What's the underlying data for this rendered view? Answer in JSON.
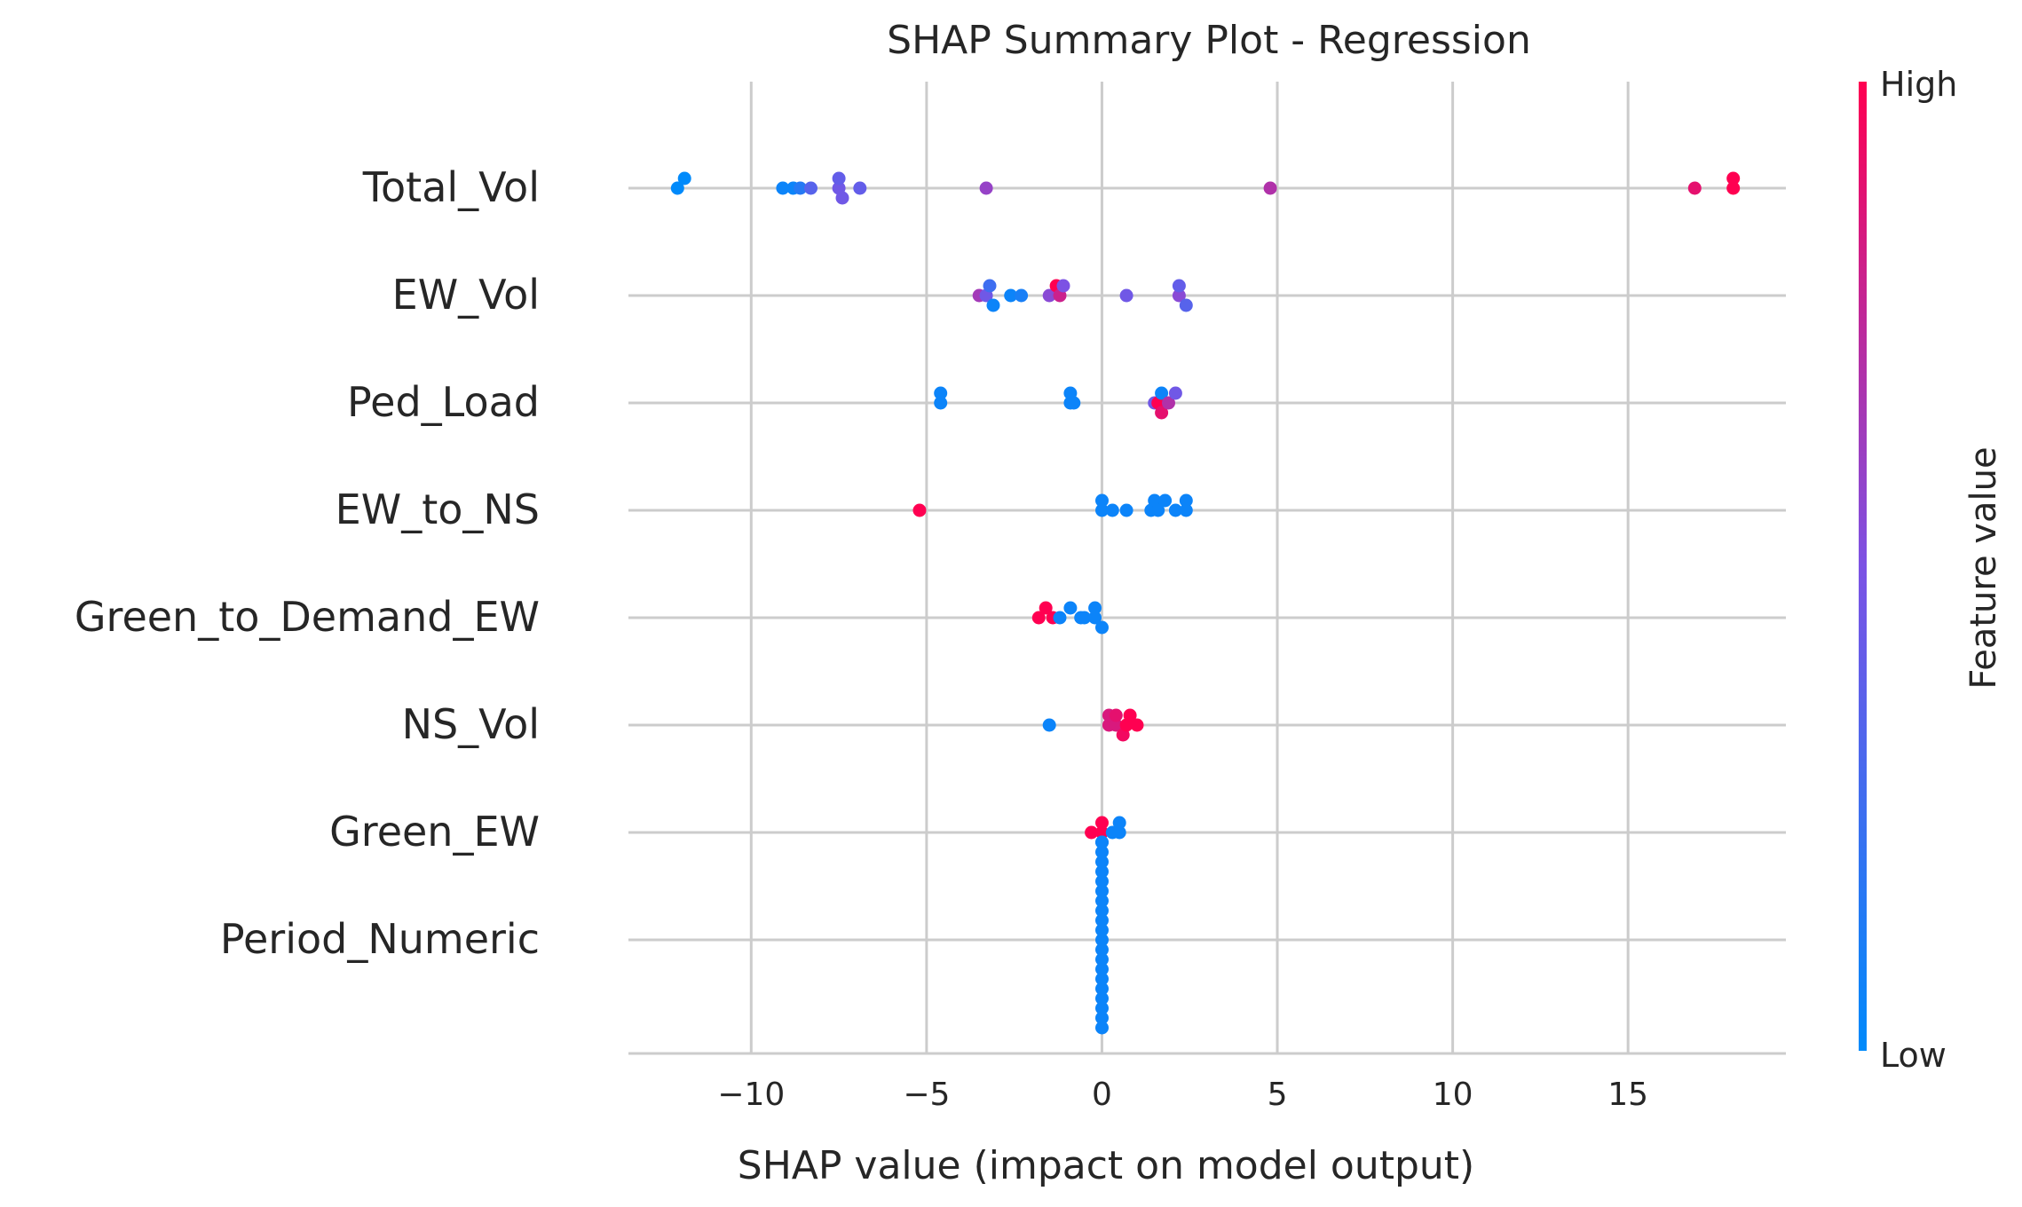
{
  "chart_data": {
    "type": "scatter",
    "title": "SHAP Summary Plot - Regression",
    "xlabel": "SHAP value (impact on model output)",
    "ylabel": "",
    "xlim": [
      -13.5,
      19.5
    ],
    "xticks": [
      -10,
      -5,
      0,
      5,
      10,
      15
    ],
    "xtick_labels": [
      "−10",
      "−5",
      "0",
      "5",
      "10",
      "15"
    ],
    "grid": true,
    "features": [
      "Total_Vol",
      "EW_Vol",
      "Ped_Load",
      "EW_to_NS",
      "Green_to_Demand_EW",
      "NS_Vol",
      "Green_EW",
      "Period_Numeric"
    ],
    "series": [
      {
        "feature": "Total_Vol",
        "points": [
          {
            "x": -12.1,
            "v": 0.0
          },
          {
            "x": -11.9,
            "v": 0.0
          },
          {
            "x": -8.6,
            "v": 0.15
          },
          {
            "x": -9.1,
            "v": 0.05
          },
          {
            "x": -8.8,
            "v": 0.05
          },
          {
            "x": -8.3,
            "v": 0.35
          },
          {
            "x": -7.5,
            "v": 0.45
          },
          {
            "x": -7.4,
            "v": 0.45
          },
          {
            "x": -7.5,
            "v": 0.4
          },
          {
            "x": -6.9,
            "v": 0.4
          },
          {
            "x": -3.3,
            "v": 0.6
          },
          {
            "x": 4.8,
            "v": 0.7
          },
          {
            "x": 16.9,
            "v": 0.9
          },
          {
            "x": 18.0,
            "v": 1.0
          },
          {
            "x": 18.0,
            "v": 1.0
          }
        ]
      },
      {
        "feature": "EW_Vol",
        "points": [
          {
            "x": -3.1,
            "v": 0.05
          },
          {
            "x": -3.5,
            "v": 0.65
          },
          {
            "x": -3.3,
            "v": 0.45
          },
          {
            "x": -3.2,
            "v": 0.25
          },
          {
            "x": -2.6,
            "v": 0.05
          },
          {
            "x": -2.3,
            "v": 0.1
          },
          {
            "x": -1.5,
            "v": 0.55
          },
          {
            "x": -1.3,
            "v": 1.0
          },
          {
            "x": -1.2,
            "v": 0.8
          },
          {
            "x": -1.1,
            "v": 0.5
          },
          {
            "x": 0.7,
            "v": 0.45
          },
          {
            "x": 2.2,
            "v": 0.55
          },
          {
            "x": 2.2,
            "v": 0.4
          },
          {
            "x": 2.4,
            "v": 0.35
          }
        ]
      },
      {
        "feature": "Ped_Load",
        "points": [
          {
            "x": -4.6,
            "v": 0.05
          },
          {
            "x": -4.6,
            "v": 0.05
          },
          {
            "x": -0.9,
            "v": 0.05
          },
          {
            "x": -0.9,
            "v": 0.05
          },
          {
            "x": -0.8,
            "v": 0.05
          },
          {
            "x": 1.7,
            "v": 0.05
          },
          {
            "x": 1.5,
            "v": 0.45
          },
          {
            "x": 1.7,
            "v": 0.9
          },
          {
            "x": 1.9,
            "v": 0.7
          },
          {
            "x": 2.1,
            "v": 0.45
          },
          {
            "x": 1.6,
            "v": 1.0
          }
        ]
      },
      {
        "feature": "EW_to_NS",
        "points": [
          {
            "x": -5.2,
            "v": 1.0
          },
          {
            "x": 0.0,
            "v": 0.05
          },
          {
            "x": 0.0,
            "v": 0.05
          },
          {
            "x": 0.3,
            "v": 0.05
          },
          {
            "x": 0.7,
            "v": 0.05
          },
          {
            "x": 1.4,
            "v": 0.05
          },
          {
            "x": 1.6,
            "v": 0.05
          },
          {
            "x": 1.5,
            "v": 0.05
          },
          {
            "x": 1.8,
            "v": 0.05
          },
          {
            "x": 2.1,
            "v": 0.05
          },
          {
            "x": 2.4,
            "v": 0.05
          },
          {
            "x": 2.4,
            "v": 0.05
          }
        ]
      },
      {
        "feature": "Green_to_Demand_EW",
        "points": [
          {
            "x": -0.2,
            "v": 0.05
          },
          {
            "x": -1.8,
            "v": 1.0
          },
          {
            "x": -1.6,
            "v": 1.0
          },
          {
            "x": -1.4,
            "v": 1.0
          },
          {
            "x": -1.2,
            "v": 0.05
          },
          {
            "x": -0.9,
            "v": 0.05
          },
          {
            "x": -0.6,
            "v": 0.05
          },
          {
            "x": -0.5,
            "v": 0.05
          },
          {
            "x": -0.2,
            "v": 0.05
          },
          {
            "x": 0.0,
            "v": 0.05
          }
        ]
      },
      {
        "feature": "NS_Vol",
        "points": [
          {
            "x": 0.2,
            "v": 0.85
          },
          {
            "x": 0.4,
            "v": 0.85
          },
          {
            "x": 0.7,
            "v": 1.0
          },
          {
            "x": -1.5,
            "v": 0.05
          },
          {
            "x": 0.2,
            "v": 0.85
          },
          {
            "x": 0.4,
            "v": 0.9
          },
          {
            "x": 0.6,
            "v": 0.95
          },
          {
            "x": 0.8,
            "v": 1.0
          },
          {
            "x": 1.0,
            "v": 1.0
          }
        ]
      },
      {
        "feature": "Green_EW",
        "points": [
          {
            "x": 0.0,
            "v": 1.0
          },
          {
            "x": 0.5,
            "v": 0.05
          },
          {
            "x": -0.3,
            "v": 1.0
          },
          {
            "x": 0.0,
            "v": 1.0
          },
          {
            "x": 0.3,
            "v": 0.05
          },
          {
            "x": 0.5,
            "v": 0.05
          },
          {
            "x": 0.0,
            "v": 0.05
          }
        ]
      },
      {
        "feature": "Period_Numeric",
        "points": [
          {
            "x": 0.0,
            "v": 0.05
          },
          {
            "x": 0.0,
            "v": 0.05
          },
          {
            "x": 0.0,
            "v": 0.05
          },
          {
            "x": 0.0,
            "v": 0.05
          },
          {
            "x": 0.0,
            "v": 0.05
          },
          {
            "x": 0.0,
            "v": 0.05
          },
          {
            "x": 0.0,
            "v": 0.05
          },
          {
            "x": 0.0,
            "v": 0.05
          },
          {
            "x": 0.0,
            "v": 0.05
          },
          {
            "x": 0.0,
            "v": 0.05
          },
          {
            "x": 0.0,
            "v": 0.05
          },
          {
            "x": 0.0,
            "v": 0.05
          },
          {
            "x": 0.0,
            "v": 0.05
          },
          {
            "x": 0.0,
            "v": 0.05
          },
          {
            "x": 0.0,
            "v": 0.05
          },
          {
            "x": 0.0,
            "v": 0.05
          },
          {
            "x": 0.0,
            "v": 0.05
          },
          {
            "x": 0.0,
            "v": 0.05
          },
          {
            "x": 0.0,
            "v": 0.05
          },
          {
            "x": 0.0,
            "v": 0.05
          }
        ]
      }
    ],
    "colorbar": {
      "label": "Feature value",
      "high_label": "High",
      "low_label": "Low",
      "low_color": "#008afb",
      "mid_color": "#7c52e4",
      "high_color": "#ff0051"
    }
  }
}
